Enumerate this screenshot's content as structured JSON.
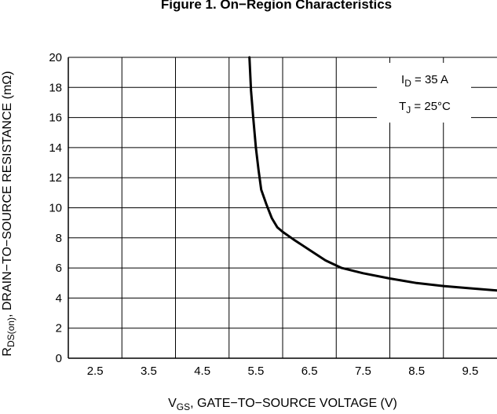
{
  "chart_data": {
    "type": "line",
    "title": "Figure 1. On−Region Characteristics",
    "xlabel": {
      "main": "V",
      "sub": "GS",
      "rest": ", GATE−TO−SOURCE VOLTAGE (V)"
    },
    "ylabel": {
      "main": "R",
      "sub": "DS(on)",
      "rest": ", DRAIN−TO−SOURCE RESISTANCE (mΩ)"
    },
    "xlim": [
      2.0,
      10.0
    ],
    "ylim": [
      0,
      20
    ],
    "xticks": [
      2.5,
      3.5,
      4.5,
      5.5,
      6.5,
      7.5,
      8.5,
      9.5
    ],
    "xtick_labels": [
      "2.5",
      "3.5",
      "4.5",
      "5.5",
      "6.5",
      "7.5",
      "8.5",
      "9.5"
    ],
    "yticks": [
      0,
      2,
      4,
      6,
      8,
      10,
      12,
      14,
      16,
      18,
      20
    ],
    "ytick_labels": [
      "0",
      "2",
      "4",
      "6",
      "8",
      "10",
      "12",
      "14",
      "16",
      "18",
      "20"
    ],
    "x_gridlines": [
      2.0,
      3.0,
      4.0,
      5.0,
      6.0,
      7.0,
      8.0,
      9.0
    ],
    "grid": true,
    "legend_position": "top-right",
    "annotations": [
      {
        "main": "I",
        "sub": "D",
        "rest": " = 35 A"
      },
      {
        "main": "T",
        "sub": "J",
        "rest": " = 25°C"
      }
    ],
    "series": [
      {
        "x": [
          5.38,
          5.41,
          5.45,
          5.5,
          5.55,
          5.6,
          5.7,
          5.8,
          5.9,
          6.0,
          6.2,
          6.5,
          6.8,
          7.1,
          7.5,
          8.0,
          8.5,
          9.0,
          9.5,
          10.0
        ],
        "values": [
          20.0,
          17.8,
          16.0,
          14.0,
          12.5,
          11.2,
          10.2,
          9.3,
          8.7,
          8.4,
          7.9,
          7.2,
          6.5,
          6.0,
          5.65,
          5.3,
          5.0,
          4.8,
          4.65,
          4.5
        ]
      }
    ],
    "colors": {
      "line": "#000000",
      "grid": "#000000"
    }
  }
}
